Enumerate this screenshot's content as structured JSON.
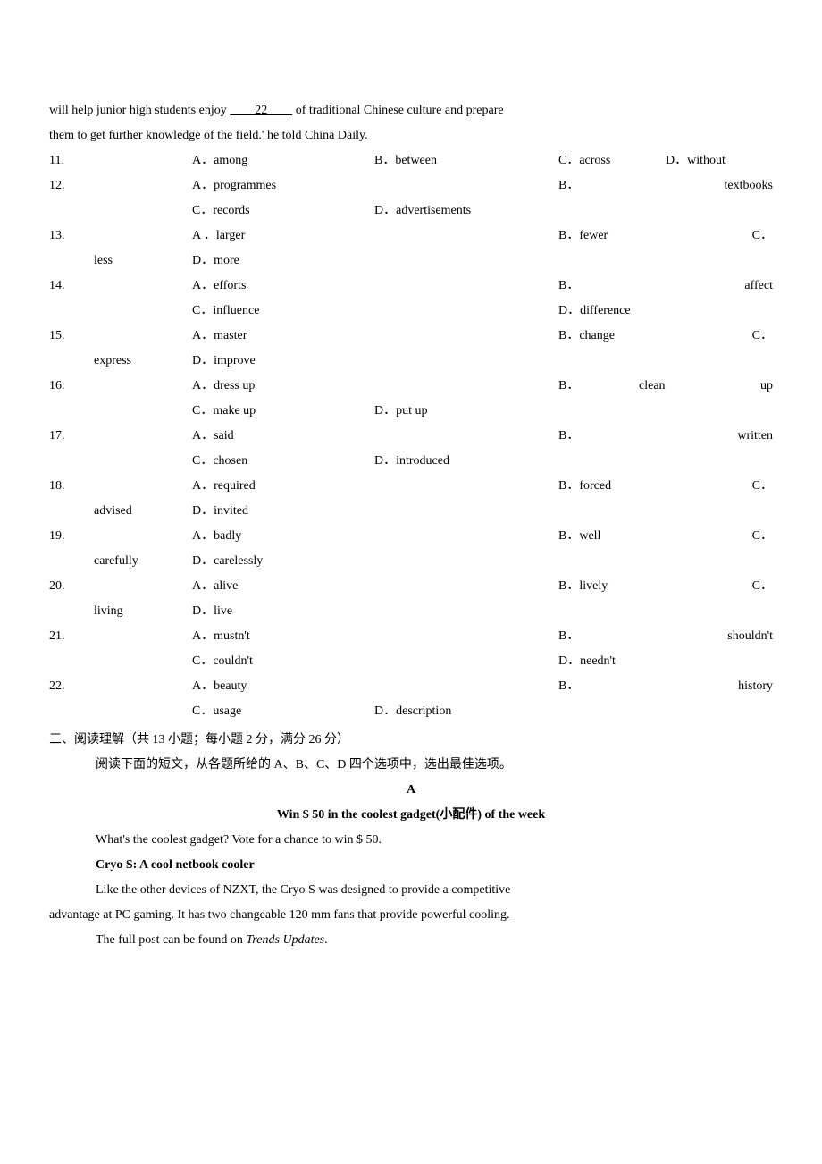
{
  "intro": {
    "line1": "will help junior high students enjoy ",
    "blank": "　　22　　",
    "line1_cont": " of traditional Chinese culture and prepare",
    "line2": "them to get further knowledge of the field.' he told China Daily."
  },
  "questions": [
    {
      "num": "11.",
      "rows": [
        {
          "opts": [
            {
              "pos": "a",
              "text": "A．among"
            },
            {
              "pos": "b",
              "text": "B．between"
            },
            {
              "pos": "c",
              "text": "C．across"
            },
            {
              "pos": "d",
              "text": "D．without"
            }
          ]
        }
      ]
    },
    {
      "num": "12.",
      "rows": [
        {
          "opts": [
            {
              "pos": "a",
              "text": "A．programmes"
            },
            {
              "pos": "b_right",
              "text": "B．"
            },
            {
              "pos": "last_right",
              "text": "textbooks"
            }
          ]
        },
        {
          "opts": [
            {
              "pos": "a",
              "text": "C．records"
            },
            {
              "pos": "b",
              "text": "D．advertisements"
            }
          ]
        }
      ]
    },
    {
      "num": "13.",
      "rows": [
        {
          "opts": [
            {
              "pos": "a",
              "text": "A ．larger"
            },
            {
              "pos": "b_right",
              "text": "B．fewer"
            },
            {
              "pos": "last_right",
              "text": "C．"
            }
          ]
        },
        {
          "hang": "less",
          "opts": [
            {
              "pos": "a",
              "text": "D．more"
            }
          ]
        }
      ]
    },
    {
      "num": "14.",
      "rows": [
        {
          "opts": [
            {
              "pos": "a",
              "text": "A．efforts"
            },
            {
              "pos": "b_right",
              "text": "B．"
            },
            {
              "pos": "last_right",
              "text": "affect"
            }
          ]
        },
        {
          "opts": [
            {
              "pos": "a",
              "text": "C．influence"
            },
            {
              "pos": "b_right",
              "text": "D．difference"
            }
          ]
        }
      ]
    },
    {
      "num": "15.",
      "rows": [
        {
          "opts": [
            {
              "pos": "a",
              "text": "A．master"
            },
            {
              "pos": "b_right",
              "text": "B．change"
            },
            {
              "pos": "last_right",
              "text": "C．"
            }
          ]
        },
        {
          "hang": "express",
          "opts": [
            {
              "pos": "a",
              "text": "D．improve"
            }
          ]
        }
      ]
    },
    {
      "num": "16.",
      "rows": [
        {
          "opts": [
            {
              "pos": "a",
              "text": "A．dress up"
            },
            {
              "pos": "b_right",
              "text": "B．"
            },
            {
              "pos": "c_mid",
              "text": "clean"
            },
            {
              "pos": "last_right",
              "text": "up"
            }
          ]
        },
        {
          "opts": [
            {
              "pos": "a",
              "text": "C．make up"
            },
            {
              "pos": "b",
              "text": "D．put up"
            }
          ]
        }
      ]
    },
    {
      "num": "17.",
      "rows": [
        {
          "opts": [
            {
              "pos": "a",
              "text": "A．said"
            },
            {
              "pos": "b_right",
              "text": "B．"
            },
            {
              "pos": "last_right",
              "text": "written"
            }
          ]
        },
        {
          "opts": [
            {
              "pos": "a",
              "text": "C．chosen"
            },
            {
              "pos": "b",
              "text": "D．introduced"
            }
          ]
        }
      ]
    },
    {
      "num": "18.",
      "rows": [
        {
          "opts": [
            {
              "pos": "a",
              "text": "A．required"
            },
            {
              "pos": "b_right",
              "text": "B．forced"
            },
            {
              "pos": "last_right",
              "text": "C．"
            }
          ]
        },
        {
          "hang": "advised",
          "opts": [
            {
              "pos": "a",
              "text": "D．invited"
            }
          ]
        }
      ]
    },
    {
      "num": "19.",
      "rows": [
        {
          "opts": [
            {
              "pos": "a",
              "text": "A．badly"
            },
            {
              "pos": "b_right",
              "text": "B．well"
            },
            {
              "pos": "last_right",
              "text": "C．"
            }
          ]
        },
        {
          "hang": "carefully",
          "opts": [
            {
              "pos": "a",
              "text": "D．carelessly"
            }
          ]
        }
      ]
    },
    {
      "num": "20.",
      "rows": [
        {
          "opts": [
            {
              "pos": "a",
              "text": "A．alive"
            },
            {
              "pos": "b_right",
              "text": "B．lively"
            },
            {
              "pos": "last_right",
              "text": "C．"
            }
          ]
        },
        {
          "hang": "living",
          "opts": [
            {
              "pos": "a",
              "text": "D．live"
            }
          ]
        }
      ]
    },
    {
      "num": "21.",
      "rows": [
        {
          "opts": [
            {
              "pos": "a",
              "text": "A．mustn't"
            },
            {
              "pos": "b_right",
              "text": "B．"
            },
            {
              "pos": "last_right",
              "text": "shouldn't"
            }
          ]
        },
        {
          "opts": [
            {
              "pos": "a",
              "text": "C．couldn't"
            },
            {
              "pos": "b_right",
              "text": "D．needn't"
            }
          ]
        }
      ]
    },
    {
      "num": "22.",
      "rows": [
        {
          "opts": [
            {
              "pos": "a",
              "text": "A．beauty"
            },
            {
              "pos": "b_right",
              "text": "B．"
            },
            {
              "pos": "last_right",
              "text": "history"
            }
          ]
        },
        {
          "opts": [
            {
              "pos": "a",
              "text": "C．usage"
            },
            {
              "pos": "b",
              "text": "D．description"
            }
          ]
        }
      ]
    }
  ],
  "section3": {
    "heading": "三、阅读理解（共 13 小题；每小题 2 分，满分 26 分）",
    "instruction": "阅读下面的短文，从各题所给的 A、B、C、D 四个选项中，选出最佳选项。",
    "passage_label": "A",
    "passage_title": "Win $ 50 in the coolest gadget(小配件) of the week",
    "p1": "What's the coolest gadget? Vote for a chance to win $ 50.",
    "sub1": "Cryo S: A cool netbook cooler",
    "p2": "Like the other devices of NZXT, the Cryo S was designed to provide a competitive",
    "p2b": "advantage at PC gaming. It has two changeable 120 mm fans that provide powerful cooling.",
    "p3_pre": "The full post can be found on ",
    "p3_italic": "Trends Updates",
    "p3_post": "."
  }
}
